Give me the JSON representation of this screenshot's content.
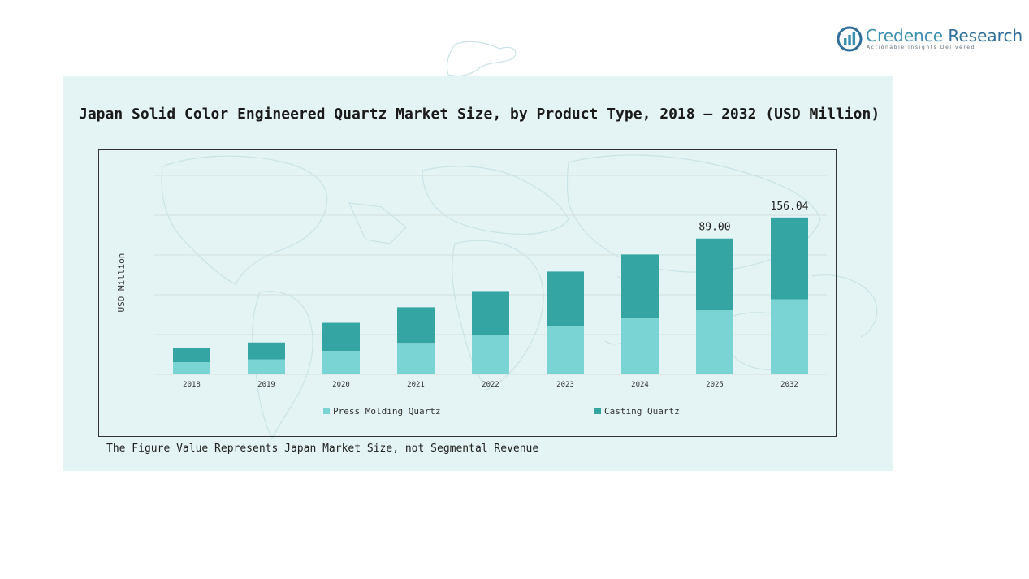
{
  "brand": {
    "name_part1": "Credence",
    "name_part2": "Research",
    "tagline": "Actionable Insights Delivered"
  },
  "colors": {
    "panel_bg": "#e4f4f4",
    "press_molding": "#7ad4d4",
    "casting": "#35a5a3",
    "gridline": "#d2dede",
    "brand_blue": "#3b8fb0"
  },
  "icons": {
    "logo": "bar-chart-circle-icon"
  },
  "footnote": "The Figure Value Represents Japan Market Size, not Segmental Revenue",
  "chart_data": {
    "type": "bar",
    "stacked": true,
    "title": "Japan Solid Color Engineered Quartz Market Size, by Product Type, 2018 – 2032 (USD Million)",
    "xlabel": "",
    "ylabel": "USD Million",
    "categories": [
      "2018",
      "2019",
      "2020",
      "2021",
      "2022",
      "2023",
      "2024",
      "2025",
      "2032"
    ],
    "series": [
      {
        "name": "Press Molding Quartz",
        "color": "#7ad4d4",
        "values": [
          9.5,
          11.7,
          18.4,
          24.7,
          31.0,
          37.9,
          44.5,
          50.2,
          58.9
        ]
      },
      {
        "name": "Casting Quartz",
        "color": "#35a5a3",
        "values": [
          11.4,
          13.3,
          22.0,
          27.9,
          34.3,
          42.7,
          49.5,
          56.3,
          64.1
        ]
      }
    ],
    "totals_labels": [
      {
        "category": "2025",
        "text": "89.00"
      },
      {
        "category": "2032",
        "text": "156.04"
      }
    ],
    "ylim": [
      0,
      156
    ],
    "grid": true,
    "legend": "bottom"
  }
}
